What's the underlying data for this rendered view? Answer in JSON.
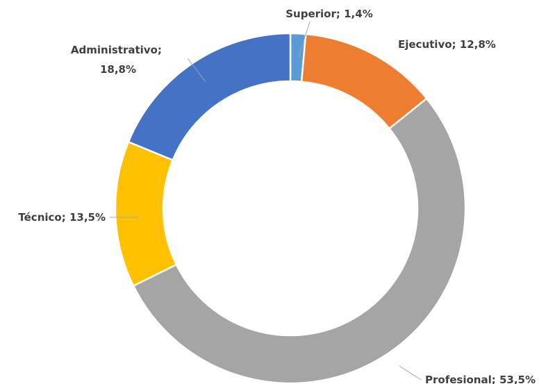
{
  "chart_data": {
    "type": "donut",
    "categories": [
      "Superior",
      "Ejecutivo",
      "Profesional",
      "Técnico",
      "Administrativo"
    ],
    "values": [
      1.4,
      12.8,
      53.5,
      13.5,
      18.8
    ],
    "value_labels": [
      "1,4%",
      "12,8%",
      "53,5%",
      "13,5%",
      "18,8%"
    ],
    "label_separator": "; ",
    "colors": [
      "#5b9bd5",
      "#ed7d31",
      "#a5a5a5",
      "#ffc000",
      "#4472c4"
    ]
  }
}
